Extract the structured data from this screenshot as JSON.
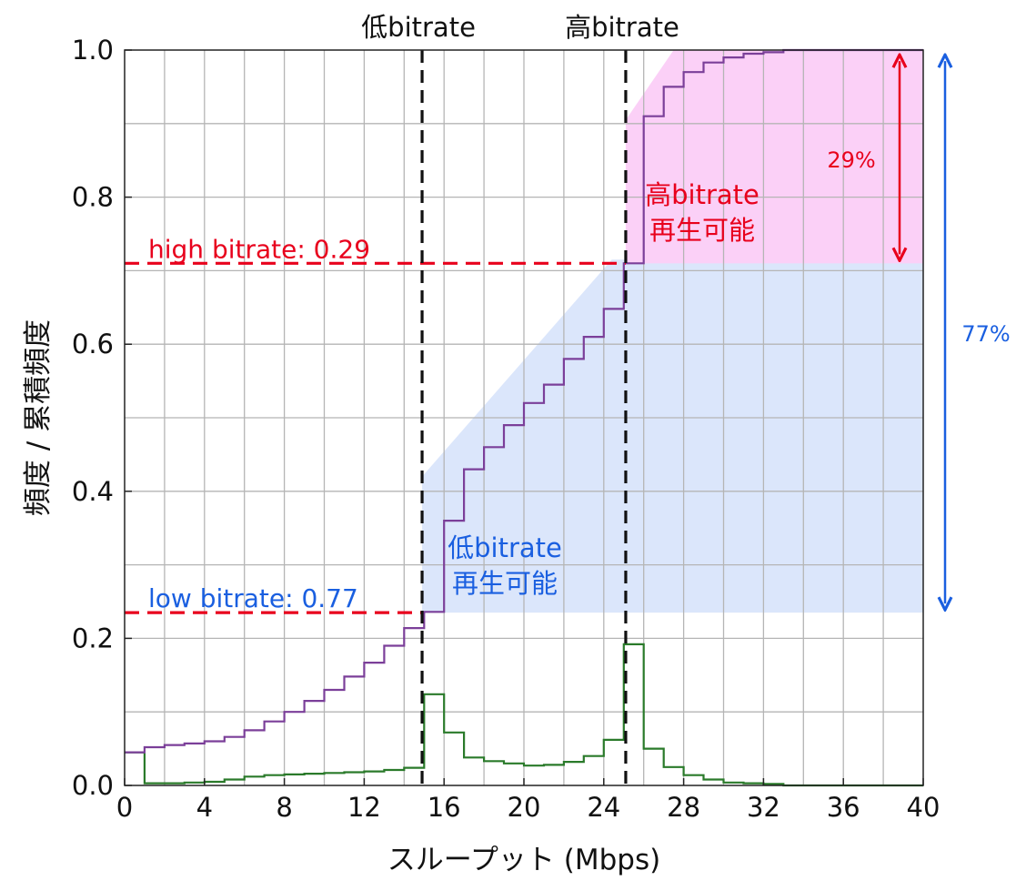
{
  "chart_data": {
    "type": "line",
    "xlabel": "スループット (Mbps)",
    "ylabel": "頻度 / 累積頻度",
    "xlim": [
      0,
      40
    ],
    "ylim": [
      0,
      1
    ],
    "xticks": [
      0,
      4,
      8,
      12,
      16,
      20,
      24,
      28,
      32,
      36,
      40
    ],
    "yticks": [
      0,
      0.2,
      0.4,
      0.6,
      0.8,
      1.0
    ],
    "ytick_labels": [
      "0.0",
      "0.2",
      "0.4",
      "0.6",
      "0.8",
      "1.0"
    ],
    "grid": true,
    "bin_edges": [
      0,
      1,
      2,
      3,
      4,
      5,
      6,
      7,
      8,
      9,
      10,
      11,
      12,
      13,
      14,
      15,
      16,
      17,
      18,
      19,
      20,
      21,
      22,
      23,
      24,
      25,
      26,
      27,
      28,
      29,
      30,
      31,
      32,
      33,
      34,
      35,
      36,
      37,
      38,
      39,
      40
    ],
    "series": [
      {
        "color": "#2a7a2a",
        "values": [
          0.045,
          0.003,
          0.003,
          0.004,
          0.005,
          0.008,
          0.012,
          0.014,
          0.015,
          0.016,
          0.017,
          0.018,
          0.019,
          0.021,
          0.024,
          0.124,
          0.072,
          0.038,
          0.033,
          0.03,
          0.027,
          0.028,
          0.032,
          0.04,
          0.062,
          0.192,
          0.05,
          0.025,
          0.014,
          0.008,
          0.004,
          0.003,
          0.002,
          0,
          0,
          0,
          0,
          0,
          0,
          0
        ]
      },
      {
        "color": "#7b3f99",
        "values": [
          0.045,
          0.052,
          0.055,
          0.057,
          0.06,
          0.066,
          0.075,
          0.087,
          0.1,
          0.115,
          0.13,
          0.148,
          0.167,
          0.19,
          0.214,
          0.236,
          0.36,
          0.43,
          0.46,
          0.49,
          0.52,
          0.545,
          0.58,
          0.61,
          0.648,
          0.71,
          0.91,
          0.95,
          0.97,
          0.983,
          0.99,
          0.995,
          0.997,
          1.0,
          1.0,
          1.0,
          1.0,
          1.0,
          1.0,
          1.0
        ]
      }
    ],
    "thresholds": [
      {
        "x": 14.9,
        "label": "低bitrate"
      },
      {
        "x": 25.1,
        "label": "高bitrate"
      }
    ],
    "cumulative_markers": [
      {
        "y": 0.71,
        "x_end": 25.1,
        "label": "high bitrate:  0.29"
      },
      {
        "y": 0.235,
        "x_end": 14.9,
        "label": "low bitrate:  0.77"
      }
    ],
    "regions": [
      {
        "name": "low",
        "color": "#dbe6fb",
        "label_line1": "低bitrate",
        "label_line2": "再生可能",
        "label_color": "#1a5fe0"
      },
      {
        "name": "high",
        "color": "#fbd0f7",
        "label_line1": "高bitrate",
        "label_line2": "再生可能",
        "label_color": "#e8001c"
      }
    ],
    "annotations": [
      {
        "label": "29%",
        "color": "#e8001c",
        "y_from": 0.71,
        "y_to": 0.98
      },
      {
        "label": "77%",
        "color": "#1a5fe0",
        "y_from": 0.235,
        "y_to": 0.98
      }
    ]
  }
}
